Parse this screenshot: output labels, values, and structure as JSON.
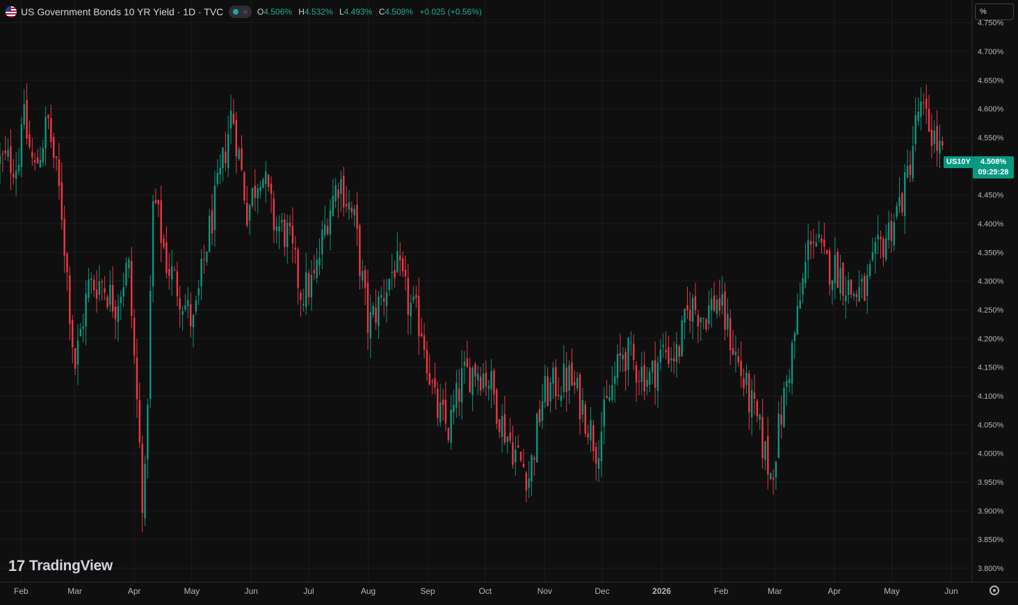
{
  "legend": {
    "title": "US Government Bonds 10 YR Yield · 1D · TVC",
    "open_label": "O",
    "open": "4.506%",
    "high_label": "H",
    "high": "4.532%",
    "low_label": "L",
    "low": "4.493%",
    "close_label": "C",
    "close": "4.508%",
    "change": "+0.025 (+0.56%)",
    "flag_icon": "us-flag-icon",
    "status_icon": "market-open-dot-icon",
    "wave_icon": "≈"
  },
  "price_scale": {
    "unit": "%"
  },
  "last_price": {
    "symbol": "US10Y",
    "value": "4.508%",
    "countdown": "09:29:28"
  },
  "watermark": {
    "glyph": "17",
    "text": "TradingView"
  },
  "colors": {
    "up": "#089981",
    "down": "#f23645",
    "background": "#0f0f0f",
    "grid": "#1c1c1c",
    "text": "#d1d4dc"
  },
  "chart_data": {
    "type": "candlestick",
    "title": "US Government Bonds 10 YR Yield · 1D · TVC",
    "xlabel": "",
    "ylabel": "",
    "ylim": [
      3.78,
      4.75
    ],
    "grid": true,
    "y_ticks": [
      "4.750%",
      "4.700%",
      "4.650%",
      "4.600%",
      "4.550%",
      "4.500%",
      "4.450%",
      "4.400%",
      "4.350%",
      "4.300%",
      "4.250%",
      "4.200%",
      "4.150%",
      "4.100%",
      "4.050%",
      "4.000%",
      "3.950%",
      "3.900%",
      "3.850%",
      "3.800%"
    ],
    "x_ticks": [
      "Feb",
      "Mar",
      "Apr",
      "May",
      "Jun",
      "Jul",
      "Aug",
      "Sep",
      "Oct",
      "Nov",
      "Dec",
      "2026",
      "Feb",
      "Mar",
      "Apr",
      "May",
      "Jun"
    ],
    "series_close": [
      {
        "date": "2025-02-01",
        "close": 4.6
      },
      {
        "date": "2025-02-08",
        "close": 4.49
      },
      {
        "date": "2025-02-15",
        "close": 4.58
      },
      {
        "date": "2025-02-22",
        "close": 4.43
      },
      {
        "date": "2025-03-01",
        "close": 4.15
      },
      {
        "date": "2025-03-08",
        "close": 4.29
      },
      {
        "date": "2025-03-15",
        "close": 4.3
      },
      {
        "date": "2025-03-22",
        "close": 4.26
      },
      {
        "date": "2025-03-29",
        "close": 4.33
      },
      {
        "date": "2025-04-04",
        "close": 4.0
      },
      {
        "date": "2025-04-06",
        "close": 3.88
      },
      {
        "date": "2025-04-11",
        "close": 4.45
      },
      {
        "date": "2025-04-18",
        "close": 4.33
      },
      {
        "date": "2025-04-25",
        "close": 4.28
      },
      {
        "date": "2025-05-02",
        "close": 4.22
      },
      {
        "date": "2025-05-09",
        "close": 4.37
      },
      {
        "date": "2025-05-16",
        "close": 4.48
      },
      {
        "date": "2025-05-22",
        "close": 4.6
      },
      {
        "date": "2025-05-30",
        "close": 4.42
      },
      {
        "date": "2025-06-06",
        "close": 4.5
      },
      {
        "date": "2025-06-13",
        "close": 4.4
      },
      {
        "date": "2025-06-20",
        "close": 4.38
      },
      {
        "date": "2025-06-27",
        "close": 4.28
      },
      {
        "date": "2025-07-04",
        "close": 4.3
      },
      {
        "date": "2025-07-11",
        "close": 4.42
      },
      {
        "date": "2025-07-17",
        "close": 4.48
      },
      {
        "date": "2025-07-25",
        "close": 4.4
      },
      {
        "date": "2025-08-01",
        "close": 4.22
      },
      {
        "date": "2025-08-08",
        "close": 4.27
      },
      {
        "date": "2025-08-15",
        "close": 4.33
      },
      {
        "date": "2025-08-22",
        "close": 4.26
      },
      {
        "date": "2025-08-29",
        "close": 4.22
      },
      {
        "date": "2025-09-05",
        "close": 4.08
      },
      {
        "date": "2025-09-12",
        "close": 4.04
      },
      {
        "date": "2025-09-19",
        "close": 4.13
      },
      {
        "date": "2025-09-26",
        "close": 4.15
      },
      {
        "date": "2025-10-03",
        "close": 4.13
      },
      {
        "date": "2025-10-10",
        "close": 4.05
      },
      {
        "date": "2025-10-17",
        "close": 4.0
      },
      {
        "date": "2025-10-24",
        "close": 3.96
      },
      {
        "date": "2025-10-31",
        "close": 4.1
      },
      {
        "date": "2025-11-07",
        "close": 4.12
      },
      {
        "date": "2025-11-14",
        "close": 4.13
      },
      {
        "date": "2025-11-21",
        "close": 4.08
      },
      {
        "date": "2025-11-28",
        "close": 4.01
      },
      {
        "date": "2025-12-05",
        "close": 4.1
      },
      {
        "date": "2025-12-12",
        "close": 4.18
      },
      {
        "date": "2025-12-19",
        "close": 4.15
      },
      {
        "date": "2025-12-26",
        "close": 4.13
      },
      {
        "date": "2026-01-02",
        "close": 4.18
      },
      {
        "date": "2026-01-09",
        "close": 4.17
      },
      {
        "date": "2026-01-16",
        "close": 4.26
      },
      {
        "date": "2026-01-23",
        "close": 4.24
      },
      {
        "date": "2026-01-30",
        "close": 4.27
      },
      {
        "date": "2026-02-06",
        "close": 4.2
      },
      {
        "date": "2026-02-13",
        "close": 4.12
      },
      {
        "date": "2026-02-20",
        "close": 4.05
      },
      {
        "date": "2026-02-27",
        "close": 3.96
      },
      {
        "date": "2026-03-06",
        "close": 4.1
      },
      {
        "date": "2026-03-13",
        "close": 4.24
      },
      {
        "date": "2026-03-20",
        "close": 4.39
      },
      {
        "date": "2026-03-27",
        "close": 4.33
      },
      {
        "date": "2026-04-03",
        "close": 4.32
      },
      {
        "date": "2026-04-10",
        "close": 4.28
      },
      {
        "date": "2026-04-17",
        "close": 4.28
      },
      {
        "date": "2026-04-24",
        "close": 4.35
      },
      {
        "date": "2026-05-01",
        "close": 4.4
      },
      {
        "date": "2026-05-08",
        "close": 4.46
      },
      {
        "date": "2026-05-15",
        "close": 4.6
      },
      {
        "date": "2026-05-22",
        "close": 4.56
      },
      {
        "date": "2026-05-28",
        "close": 4.508
      }
    ]
  }
}
